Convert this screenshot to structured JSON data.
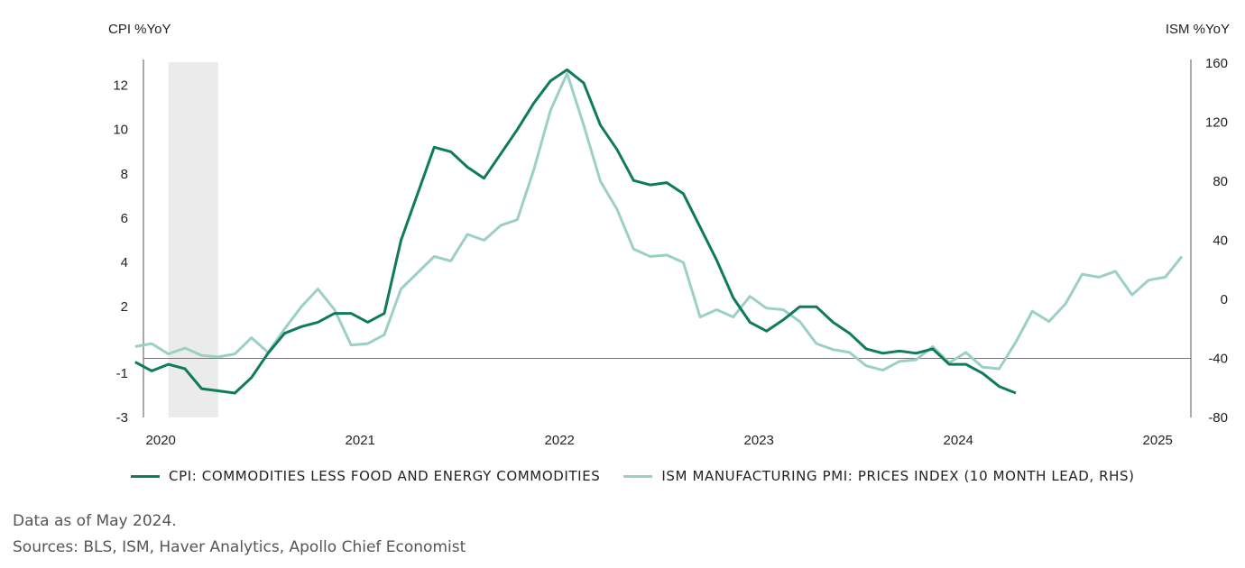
{
  "chart_data": {
    "type": "line",
    "left_axis_label": "CPI %YoY",
    "right_axis_label": "ISM %YoY",
    "left_ylim": [
      -3,
      13
    ],
    "right_ylim": [
      -80,
      160
    ],
    "left_ticks": [
      -3,
      -1,
      2,
      4,
      6,
      8,
      10,
      12
    ],
    "right_ticks": [
      -80,
      -40,
      0,
      40,
      80,
      120,
      160
    ],
    "x_ticks": [
      "2020",
      "2021",
      "2022",
      "2023",
      "2024",
      "2025"
    ],
    "recession_shading": [
      "2020-02",
      "2020-04"
    ],
    "zero_line_at": -40,
    "series": [
      {
        "name": "CPI: COMMODITIES LESS FOOD AND ENERGY COMMODITIES",
        "axis": "left",
        "color": "#0f7a5c",
        "x": [
          "2019-12",
          "2020-01",
          "2020-02",
          "2020-03",
          "2020-04",
          "2020-05",
          "2020-06",
          "2020-07",
          "2020-08",
          "2020-09",
          "2020-10",
          "2020-11",
          "2020-12",
          "2021-01",
          "2021-02",
          "2021-03",
          "2021-04",
          "2021-05",
          "2021-06",
          "2021-07",
          "2021-08",
          "2021-09",
          "2021-10",
          "2021-11",
          "2021-12",
          "2022-01",
          "2022-02",
          "2022-03",
          "2022-04",
          "2022-05",
          "2022-06",
          "2022-07",
          "2022-08",
          "2022-09",
          "2022-10",
          "2022-11",
          "2022-12",
          "2023-01",
          "2023-02",
          "2023-03",
          "2023-04",
          "2023-05",
          "2023-06",
          "2023-07",
          "2023-08",
          "2023-09",
          "2023-10",
          "2023-11",
          "2023-12",
          "2024-01",
          "2024-02",
          "2024-03",
          "2024-04",
          "2024-05"
        ],
        "y": [
          -0.5,
          -0.9,
          -0.6,
          -0.8,
          -1.7,
          -1.8,
          -1.9,
          -1.2,
          -0.1,
          0.8,
          1.1,
          1.3,
          1.7,
          1.7,
          1.3,
          1.7,
          5.0,
          7.1,
          9.2,
          9.0,
          8.3,
          7.8,
          8.9,
          10.0,
          11.2,
          12.2,
          12.7,
          12.1,
          10.2,
          9.1,
          7.7,
          7.5,
          7.6,
          7.1,
          5.6,
          4.1,
          2.4,
          1.3,
          0.9,
          1.4,
          2.0,
          2.0,
          1.3,
          0.8,
          0.1,
          -0.1,
          0.0,
          -0.1,
          0.1,
          -0.6,
          -0.6,
          -1.0,
          -1.6,
          -1.9
        ]
      },
      {
        "name": "ISM MANUFACTURING PMI: PRICES INDEX (10 MONTH LEAD, RHS)",
        "axis": "right",
        "color": "#9ccfc5",
        "x": [
          "2019-12",
          "2020-01",
          "2020-02",
          "2020-03",
          "2020-04",
          "2020-05",
          "2020-06",
          "2020-07",
          "2020-08",
          "2020-09",
          "2020-10",
          "2020-11",
          "2020-12",
          "2021-01",
          "2021-02",
          "2021-03",
          "2021-04",
          "2021-05",
          "2021-06",
          "2021-07",
          "2021-08",
          "2021-09",
          "2021-10",
          "2021-11",
          "2021-12",
          "2022-01",
          "2022-02",
          "2022-03",
          "2022-04",
          "2022-05",
          "2022-06",
          "2022-07",
          "2022-08",
          "2022-09",
          "2022-10",
          "2022-11",
          "2022-12",
          "2023-01",
          "2023-02",
          "2023-03",
          "2023-04",
          "2023-05",
          "2023-06",
          "2023-07",
          "2023-08",
          "2023-09",
          "2023-10",
          "2023-11",
          "2023-12",
          "2024-01",
          "2024-02",
          "2024-03",
          "2024-04",
          "2024-05",
          "2024-06",
          "2024-07",
          "2024-08",
          "2024-09",
          "2024-10",
          "2024-11",
          "2024-12",
          "2025-01",
          "2025-02",
          "2025-03"
        ],
        "y": [
          -32,
          -30,
          -37,
          -33,
          -38,
          -39,
          -37,
          -26,
          -36,
          -20,
          -5,
          7,
          -7,
          -31,
          -30,
          -24,
          7,
          18,
          29,
          26,
          44,
          40,
          50,
          54,
          88,
          128,
          153,
          118,
          80,
          61,
          34,
          29,
          30,
          25,
          -12,
          -7,
          -12,
          2,
          -6,
          -7,
          -15,
          -30,
          -34,
          -36,
          -45,
          -48,
          -42,
          -41,
          -32,
          -43,
          -36,
          -46,
          -47,
          -29,
          -8,
          -15,
          -3,
          17,
          15,
          19,
          3,
          13,
          15,
          29
        ]
      }
    ]
  },
  "legend": {
    "cpi_label": "CPI: COMMODITIES LESS FOOD AND ENERGY COMMODITIES",
    "ism_label": "ISM MANUFACTURING PMI: PRICES INDEX (10 MONTH LEAD, RHS)"
  },
  "notes": {
    "data_as_of": "Data as of May 2024.",
    "sources": "Sources: BLS, ISM, Haver Analytics, Apollo Chief Economist"
  }
}
